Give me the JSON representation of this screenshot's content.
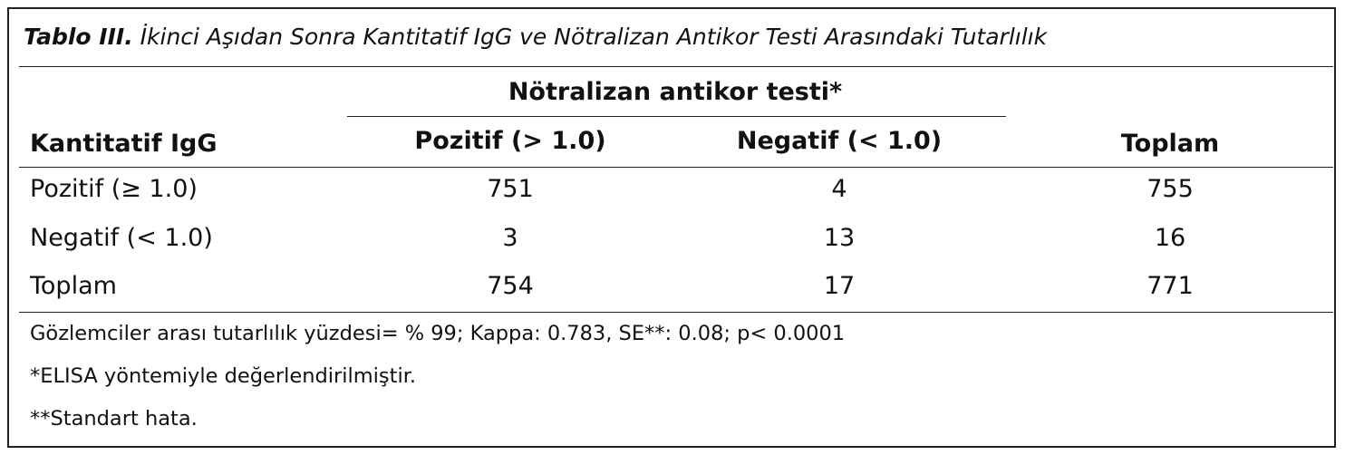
{
  "caption": {
    "label": "Tablo III.",
    "text": "İkinci Aşıdan Sonra Kantitatif IgG ve Nötralizan Antikor Testi Arasındaki Tutarlılık"
  },
  "table": {
    "group_header": "Nötralizan antikor testi*",
    "row_header": "Kantitatif IgG",
    "columns": [
      "Pozitif (> 1.0)",
      "Negatif (< 1.0)",
      "Toplam"
    ],
    "rows": [
      {
        "label": "Pozitif (≥ 1.0)",
        "values": [
          "751",
          "4",
          "755"
        ]
      },
      {
        "label": "Negatif (< 1.0)",
        "values": [
          "3",
          "13",
          "16"
        ]
      },
      {
        "label": "Toplam",
        "values": [
          "754",
          "17",
          "771"
        ]
      }
    ]
  },
  "notes": [
    "Gözlemciler arası tutarlılık yüzdesi= % 99; Kappa: 0.783, SE**: 0.08; p< 0.0001",
    "*ELISA yöntemiyle değerlendirilmiştir.",
    "**Standart hata."
  ]
}
